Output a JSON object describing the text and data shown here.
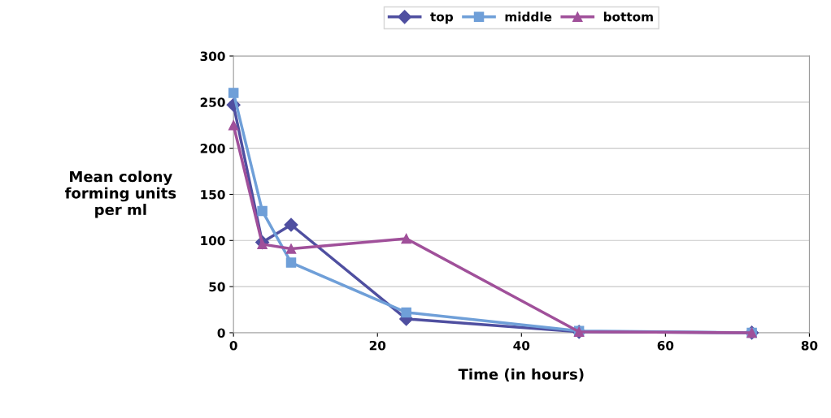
{
  "chart_data": {
    "type": "line",
    "xlabel": "Time (in hours)",
    "ylabel": "Mean colony\nforming units\nper ml",
    "x": [
      0,
      4,
      8,
      24,
      48,
      72
    ],
    "series": [
      {
        "name": "top",
        "color": "#4f4fa0",
        "marker": "diamond",
        "values": [
          247,
          98,
          117,
          15,
          1,
          0
        ]
      },
      {
        "name": "middle",
        "color": "#6f9fd8",
        "marker": "square",
        "values": [
          260,
          132,
          76,
          22,
          2,
          0
        ]
      },
      {
        "name": "bottom",
        "color": "#a0509a",
        "marker": "triangle",
        "values": [
          225,
          96,
          91,
          102,
          1,
          0
        ]
      }
    ],
    "xlim": [
      0,
      80
    ],
    "xticks": [
      0,
      20,
      40,
      60,
      80
    ],
    "ylim": [
      0,
      300
    ],
    "yticks": [
      0,
      50,
      100,
      150,
      200,
      250,
      300
    ],
    "grid": "y",
    "legend": "top",
    "line_style": "solid"
  }
}
